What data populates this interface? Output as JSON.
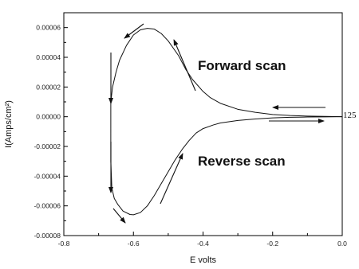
{
  "chart_data": {
    "type": "line",
    "xlabel": "E volts",
    "ylabel": "I(Amps/cm²)",
    "xlim": [
      -0.8,
      0.0
    ],
    "ylim": [
      -8e-05,
      7e-05
    ],
    "x_ticks": [
      "-0.8",
      "-0.6",
      "-0.4",
      "-0.2",
      "0.0"
    ],
    "x_tick_values": [
      -0.8,
      -0.6,
      -0.4,
      -0.2,
      0.0
    ],
    "y_ticks": [
      "-0.00008",
      "-0.00006",
      "-0.00004",
      "-0.00002",
      "0.00000",
      "0.00002",
      "0.00004",
      "0.00006"
    ],
    "y_tick_values": [
      -8e-05,
      -6e-05,
      -4e-05,
      -2e-05,
      0.0,
      2e-05,
      4e-05,
      6e-05
    ],
    "grid": false,
    "series": [
      {
        "values_x": [
          0.0,
          -0.05,
          -0.1,
          -0.15,
          -0.2,
          -0.25,
          -0.3,
          -0.35,
          -0.38,
          -0.4,
          -0.43,
          -0.45,
          -0.47,
          -0.5,
          -0.52,
          -0.54,
          -0.56,
          -0.58,
          -0.6,
          -0.62,
          -0.64,
          -0.65,
          -0.66,
          -0.665
        ],
        "values_y": [
          0.0,
          2e-07,
          4e-07,
          8e-07,
          1.5e-06,
          3e-06,
          5e-06,
          9e-06,
          1.3e-05,
          1.7e-05,
          2.5e-05,
          3.2e-05,
          4.1e-05,
          5.1e-05,
          5.6e-05,
          5.9e-05,
          5.95e-05,
          5.85e-05,
          5.5e-05,
          4.8e-05,
          3.8e-05,
          3e-05,
          2e-05,
          1e-05
        ]
      },
      {
        "values_x": [
          -0.665,
          -0.665,
          -0.662,
          -0.655,
          -0.645,
          -0.63,
          -0.61,
          -0.6,
          -0.58,
          -0.56,
          -0.54,
          -0.52,
          -0.5,
          -0.48,
          -0.46,
          -0.44,
          -0.42,
          -0.4,
          -0.37,
          -0.35,
          -0.3,
          -0.25,
          -0.2,
          -0.15,
          -0.1,
          -0.05,
          0.0
        ],
        "values_y": [
          1e-05,
          -3e-05,
          -4.8e-05,
          -5.5e-05,
          -5.9e-05,
          -6.35e-05,
          -6.58e-05,
          -6.6e-05,
          -6.45e-05,
          -6e-05,
          -5.3e-05,
          -4.5e-05,
          -3.7e-05,
          -2.9e-05,
          -2.2e-05,
          -1.6e-05,
          -1.1e-05,
          -8e-06,
          -5.5e-06,
          -4.2e-06,
          -2.5e-06,
          -1.5e-06,
          -8e-07,
          -4e-07,
          -2e-07,
          -1e-07,
          0.0
        ]
      }
    ],
    "annotations": [
      {
        "text": "Forward scan"
      },
      {
        "text": "Reverse scan"
      },
      {
        "text": "125"
      }
    ]
  }
}
